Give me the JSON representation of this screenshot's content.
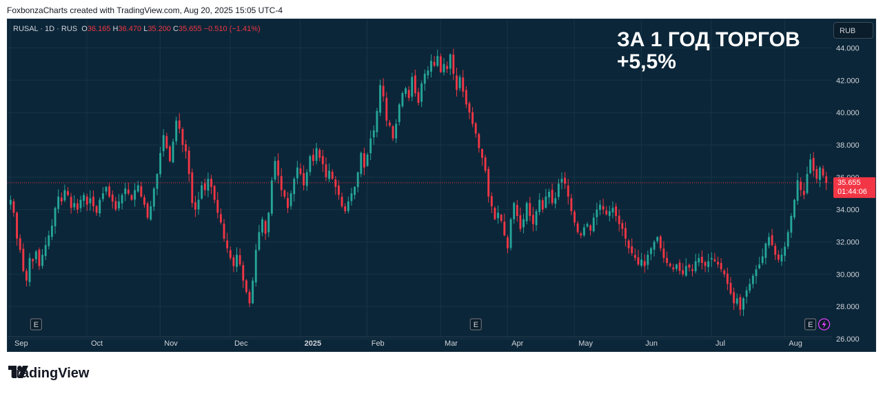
{
  "caption": "FoxbonzaCharts created with TradingView.com, Aug 20, 2025 15:05 UTC-4",
  "ohlc": {
    "symbol": "RUSAL · 1D · RUS",
    "o_label": "O",
    "o": "36.165",
    "h_label": "H",
    "h": "36.470",
    "l_label": "L",
    "l": "35.200",
    "c_label": "C",
    "c": "35.655",
    "change": "−0.510 (−1.41%)"
  },
  "headline": {
    "line1": "ЗА 1 ГОД ТОРГОВ",
    "line2": "+5,5%"
  },
  "currency_button": "RUB",
  "price_label": {
    "price": "35.655",
    "countdown": "01:44:06"
  },
  "brand": {
    "name": "TradingView"
  },
  "colors": {
    "up": "#26a69a",
    "down": "#f23645",
    "background": "#0b2638",
    "grid": "#173547",
    "text": "#d1d4dc"
  },
  "icons": [
    "earnings-e-icon",
    "lightning-icon",
    "tradingview-logo-icon"
  ],
  "chart_data": {
    "type": "candlestick",
    "symbol": "RUSAL",
    "interval": "1D",
    "currency": "RUB",
    "ylim": [
      26.0,
      45.0
    ],
    "y_ticks": [
      "44.000",
      "42.000",
      "40.000",
      "38.000",
      "36.000",
      "34.000",
      "32.000",
      "30.000",
      "28.000",
      "26.000"
    ],
    "x_ticks": [
      "Sep",
      "Oct",
      "Nov",
      "Dec",
      "2025",
      "Feb",
      "Mar",
      "Apr",
      "May",
      "Jun",
      "Jul",
      "Aug"
    ],
    "last_price": 35.655,
    "earnings_markers": [
      "E",
      "E",
      "E"
    ],
    "close_path": [
      {
        "m": "Sep",
        "v": [
          34.6,
          33.8,
          32.2,
          31.5,
          30.2,
          29.6,
          31.0,
          30.8,
          31.4,
          30.5,
          31.2,
          31.8,
          32.4,
          33.0,
          34.1,
          34.8,
          34.5,
          35.2,
          34.9,
          34.1,
          34.4,
          34.0,
          34.6,
          34.9
        ]
      },
      {
        "m": "Oct",
        "v": [
          34.3,
          34.7,
          34.2,
          33.8,
          34.6,
          35.0,
          35.4,
          34.8,
          34.5,
          34.0,
          34.5,
          34.9,
          35.3,
          35.0,
          34.6,
          35.2,
          35.5,
          34.8,
          34.3,
          33.5,
          34.2,
          35.3,
          36.2
        ]
      },
      {
        "m": "Nov",
        "v": [
          37.5,
          38.6,
          37.8,
          37.0,
          38.2,
          39.5,
          39.0,
          38.0,
          37.6,
          36.2,
          34.4,
          34.0,
          34.6,
          35.5,
          35.2,
          35.9,
          35.4,
          34.6,
          33.8,
          33.2,
          32.2,
          31.6
        ]
      },
      {
        "m": "Dec",
        "v": [
          31.0,
          30.5,
          31.2,
          30.6,
          29.6,
          28.9,
          28.2,
          29.6,
          31.5,
          32.6,
          33.4,
          32.5,
          33.8,
          35.8,
          37.0,
          36.1,
          35.2,
          34.8,
          34.1,
          35.0,
          35.9,
          36.6
        ]
      },
      {
        "m": "2025",
        "v": [
          36.2,
          35.5,
          36.3,
          37.3,
          37.0,
          37.8,
          37.2,
          36.8,
          36.0,
          36.4,
          35.9,
          35.4,
          34.9,
          34.2,
          33.9,
          34.5,
          35.0,
          35.4,
          36.3,
          37.5,
          36.6
        ]
      },
      {
        "m": "Feb",
        "v": [
          37.4,
          38.4,
          38.9,
          40.1,
          41.7,
          41.0,
          39.5,
          39.2,
          38.4,
          39.3,
          40.5,
          41.2,
          41.5,
          40.9,
          42.2,
          41.2,
          40.6,
          41.8,
          42.4,
          42.6,
          43.2,
          42.9,
          43.5
        ]
      },
      {
        "m": "Mar",
        "v": [
          42.5,
          43.0,
          42.7,
          43.6,
          42.4,
          41.4,
          42.2,
          41.3,
          40.5,
          40.0,
          39.3,
          38.7,
          37.8,
          37.2,
          36.4,
          34.8,
          34.2,
          33.4,
          33.8,
          33.3,
          32.4
        ]
      },
      {
        "m": "Apr",
        "v": [
          31.6,
          33.4,
          34.4,
          33.6,
          32.8,
          33.4,
          34.4,
          33.6,
          33.1,
          33.9,
          34.6,
          34.0,
          34.8,
          35.1,
          34.4,
          34.7,
          35.6,
          35.9,
          35.6,
          34.8,
          33.9
        ]
      },
      {
        "m": "May",
        "v": [
          33.2,
          32.6,
          32.4,
          32.9,
          33.1,
          32.7,
          33.5,
          34.0,
          34.3,
          34.0,
          33.7,
          33.9,
          34.1,
          33.6,
          33.1,
          32.8,
          32.2,
          31.6,
          31.3,
          31.0,
          30.6
        ]
      },
      {
        "m": "Jun",
        "v": [
          30.9,
          30.5,
          31.2,
          31.6,
          32.0,
          32.3,
          31.6,
          31.0,
          30.7,
          30.5,
          30.3,
          30.6,
          30.2,
          30.0,
          30.5,
          30.4,
          30.2,
          30.8,
          31.0,
          30.7,
          30.5,
          30.8
        ]
      },
      {
        "m": "Jul",
        "v": [
          31.0,
          30.8,
          30.6,
          30.3,
          30.0,
          29.4,
          28.8,
          28.2,
          28.5,
          27.8,
          28.5,
          29.0,
          29.4,
          29.9,
          30.3,
          30.6,
          31.1,
          31.9,
          32.3,
          31.8,
          31.2,
          30.9,
          31.2
        ]
      },
      {
        "m": "Aug",
        "v": [
          31.7,
          32.6,
          33.6,
          34.6,
          35.8,
          35.2,
          34.9,
          36.2,
          37.1,
          36.4,
          35.9,
          36.6,
          36.1,
          35.655
        ]
      }
    ]
  }
}
